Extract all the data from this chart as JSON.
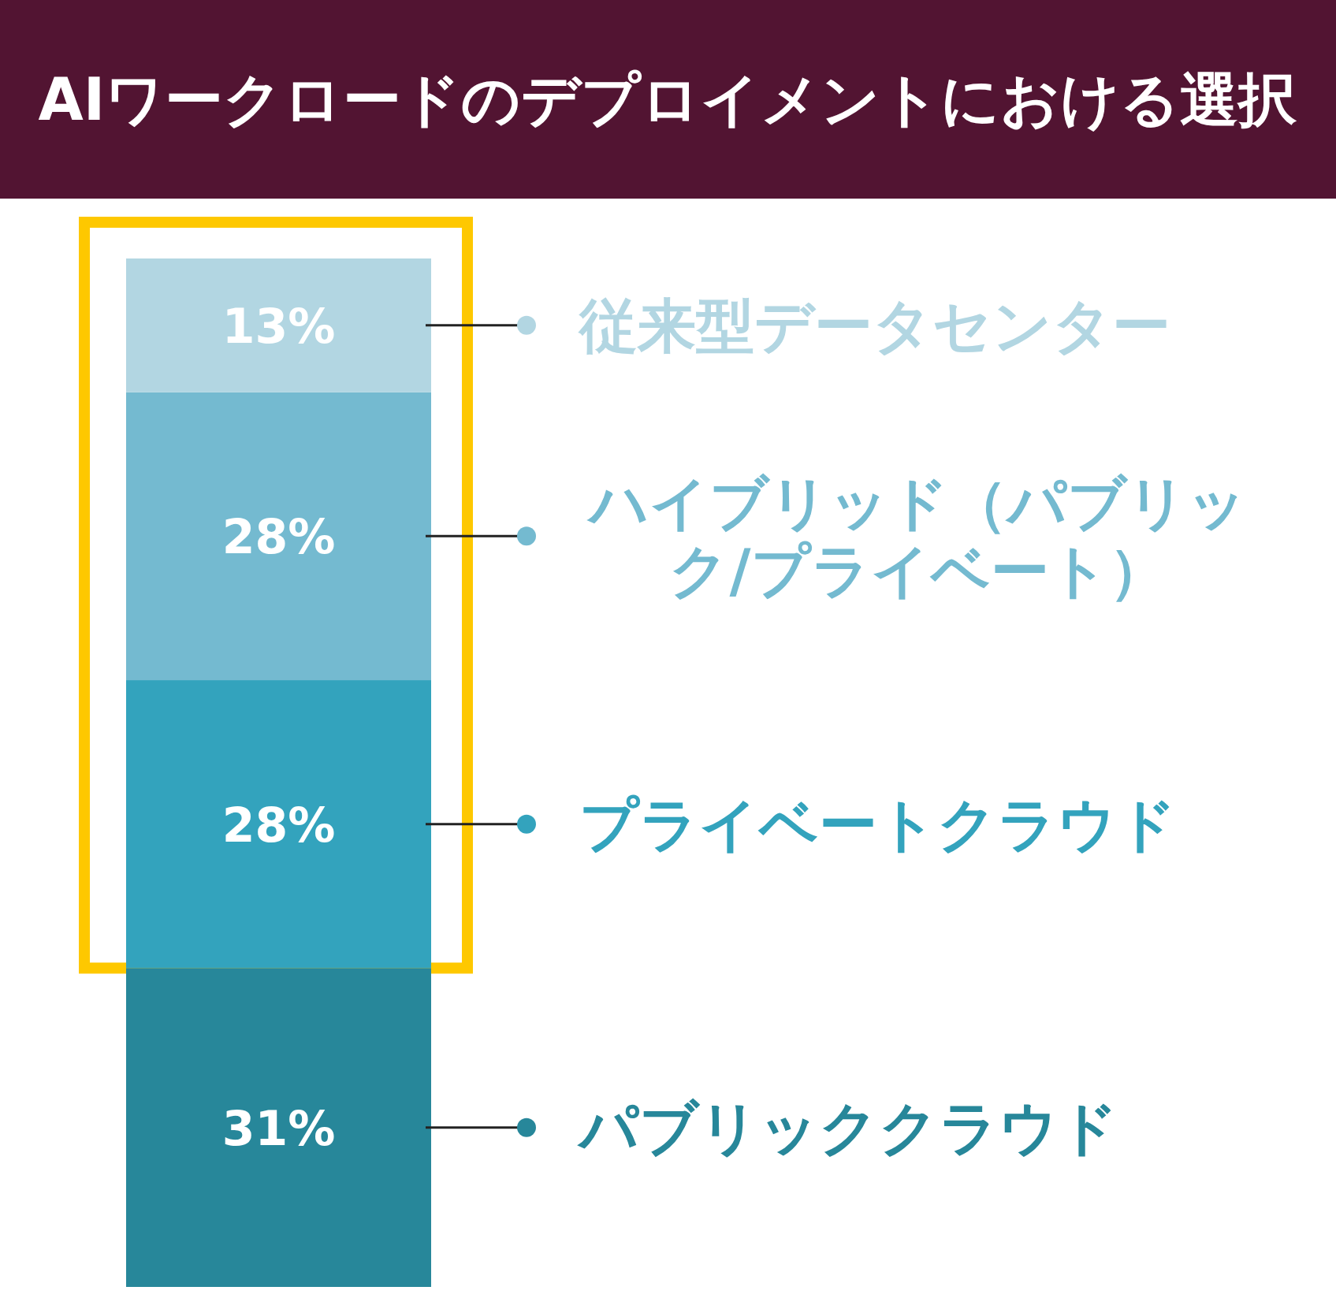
{
  "chart_data": {
    "type": "bar",
    "title": "AIワークロードのデプロイメントにおける選択",
    "stacked": true,
    "legend": "right",
    "categories": [
      null
    ],
    "series": [
      {
        "name": "パブリッククラウド",
        "color": "#27879a",
        "values": [
          31
        ],
        "value_labels": [
          "31%"
        ]
      },
      {
        "name": "プライベートクラウド",
        "color": "#33a3bd",
        "values": [
          28
        ],
        "value_labels": [
          "28%"
        ]
      },
      {
        "name": "ハイブリッド（パブリック/プライベート）",
        "color": "#74bad0",
        "values": [
          28
        ],
        "value_labels": [
          "28%"
        ]
      },
      {
        "name": "従来型データセンター",
        "color": "#b2d6e2",
        "values": [
          13
        ],
        "value_labels": [
          "13%"
        ]
      }
    ]
  }
}
